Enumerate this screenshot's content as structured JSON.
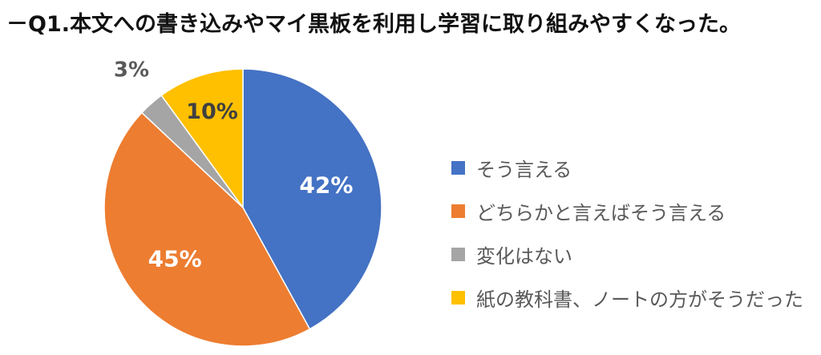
{
  "title": "－Q1.本文への書き込みやマイ黒板を利用し学習に取り組みやすくなった。",
  "chart_data": {
    "type": "pie",
    "title": "－Q1.本文への書き込みやマイ黒板を利用し学習に取り組みやすくなった。",
    "categories": [
      "そう言える",
      "どちらかと言えばそう言える",
      "変化はない",
      "紙の教科書、ノートの方がそうだった"
    ],
    "values": [
      42,
      45,
      3,
      10
    ],
    "labels": [
      "42%",
      "45%",
      "3%",
      "10%"
    ],
    "colors": [
      "#4472C4",
      "#ED7D31",
      "#A5A5A5",
      "#FFC000"
    ],
    "legend_position": "right",
    "start": "12 o'clock",
    "direction": "clockwise"
  }
}
